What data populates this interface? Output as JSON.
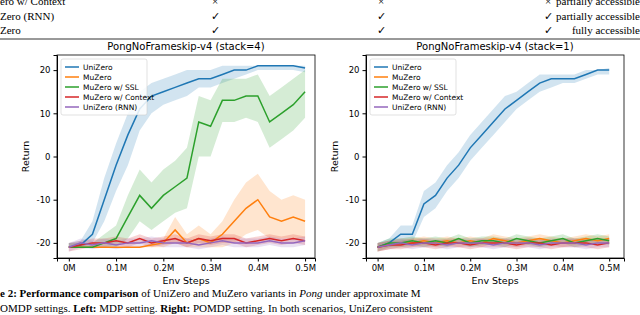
{
  "table": {
    "rows": [
      [
        "ero w/ Context",
        "×",
        "×",
        "×",
        "partially accessible"
      ],
      [
        "Zero (RNN)",
        "✓",
        "✓",
        "✓",
        "partially accessible"
      ],
      [
        "Zero",
        "✓",
        "✓",
        "✓",
        "fully accessible"
      ]
    ]
  },
  "chart_data": [
    {
      "type": "line",
      "title": "PongNoFrameskip-v4 (stack=4)",
      "x_label": "Env Steps",
      "y_label": "Return",
      "x": [
        0,
        25000,
        50000,
        75000,
        100000,
        125000,
        150000,
        175000,
        200000,
        225000,
        250000,
        275000,
        300000,
        325000,
        350000,
        375000,
        400000,
        425000,
        450000,
        475000,
        500000
      ],
      "xlim": [
        -25000,
        521000
      ],
      "xticks": [
        {
          "value": 0,
          "label": "0M"
        },
        {
          "value": 100000,
          "label": "0.1M"
        },
        {
          "value": 200000,
          "label": "0.2M"
        },
        {
          "value": 300000,
          "label": "0.3M"
        },
        {
          "value": 400000,
          "label": "0.4M"
        },
        {
          "value": 500000,
          "label": "0.5M"
        }
      ],
      "ylim": [
        -23.5,
        23.5
      ],
      "yticks": [
        -20,
        -10,
        0,
        10,
        20
      ],
      "grid": false,
      "legend": "upper left",
      "series": [
        {
          "name": "UniZero",
          "color": "#1f77b4",
          "values": [
            -21,
            -20.5,
            -18,
            -10,
            -2,
            5,
            11,
            14,
            15,
            16,
            17,
            18,
            18,
            19,
            20,
            20,
            21,
            21,
            21,
            21,
            20.5
          ],
          "lower": [
            -21,
            -21,
            -20,
            -15,
            -8,
            -2,
            6,
            10,
            12,
            13,
            14,
            16,
            16,
            17,
            18,
            19,
            20,
            20,
            20,
            20,
            19.5
          ],
          "upper": [
            -20,
            -19.5,
            -15,
            -5,
            3,
            10,
            15,
            17,
            18,
            19,
            20,
            20,
            20,
            21,
            21,
            21,
            21,
            21,
            21,
            21,
            21
          ]
        },
        {
          "name": "MuZero",
          "color": "#ff7f0e",
          "values": [
            -21,
            -21,
            -21,
            -21,
            -21,
            -21,
            -21,
            -20.5,
            -20,
            -17,
            -20,
            -19,
            -20,
            -18,
            -15,
            -12,
            -10,
            -14,
            -15,
            -14,
            -15
          ],
          "lower": [
            -21,
            -21,
            -21,
            -21,
            -21,
            -21,
            -21,
            -21,
            -21,
            -20,
            -21,
            -21,
            -21,
            -21,
            -20,
            -18,
            -17,
            -19,
            -19,
            -19,
            -19
          ],
          "upper": [
            -21,
            -21,
            -21,
            -21,
            -21,
            -21,
            -21,
            -20,
            -19,
            -14,
            -18,
            -16,
            -18,
            -15,
            -10,
            -6,
            -4,
            -8,
            -10,
            -9,
            -10
          ]
        },
        {
          "name": "MuZero w/ SSL",
          "color": "#2ca02c",
          "values": [
            -21,
            -21,
            -21,
            -20,
            -19,
            -14,
            -9,
            -12,
            -9,
            -7,
            -5,
            8,
            7,
            13,
            13,
            14,
            14,
            8,
            10,
            12,
            15
          ],
          "lower": [
            -21,
            -21,
            -21,
            -21,
            -21,
            -19,
            -15,
            -17,
            -15,
            -13,
            -12,
            0,
            0,
            8,
            8,
            9,
            8,
            2,
            4,
            6,
            9
          ],
          "upper": [
            -20,
            -20,
            -20,
            -18,
            -16,
            -9,
            -3,
            -6,
            -3,
            -1,
            2,
            14,
            13,
            18,
            18,
            18,
            19,
            14,
            16,
            18,
            20
          ]
        },
        {
          "name": "MuZero w/ Context",
          "color": "#d62728",
          "values": [
            -21,
            -20.5,
            -20,
            -20,
            -19.5,
            -20,
            -19,
            -20,
            -19.5,
            -19,
            -20,
            -19,
            -19.5,
            -19,
            -19,
            -20,
            -19.5,
            -19,
            -19.5,
            -19,
            -19.5
          ],
          "lower": [
            -22,
            -21.5,
            -21,
            -21,
            -20.5,
            -21,
            -20,
            -21,
            -20.5,
            -20,
            -21,
            -20,
            -20.5,
            -20,
            -20,
            -21,
            -20.5,
            -20,
            -20.5,
            -20,
            -20.5
          ],
          "upper": [
            -20,
            -19.5,
            -19,
            -19,
            -18.5,
            -19,
            -18,
            -19,
            -18.5,
            -18,
            -19,
            -18,
            -18.5,
            -18,
            -18,
            -19,
            -18.5,
            -18,
            -18.5,
            -18,
            -18.5
          ]
        },
        {
          "name": "UniZero (RNN)",
          "color": "#9467bd",
          "values": [
            -21,
            -20,
            -20.5,
            -20,
            -20.5,
            -20,
            -20,
            -19.5,
            -20,
            -20,
            -20,
            -20.5,
            -20,
            -19.5,
            -20,
            -20,
            -20,
            -19.5,
            -20,
            -20,
            -19.5
          ],
          "lower": [
            -22,
            -21,
            -21.5,
            -21,
            -21.5,
            -21,
            -21,
            -20.5,
            -21,
            -21,
            -21,
            -21.5,
            -21,
            -20.5,
            -21,
            -21,
            -21,
            -20.5,
            -21,
            -21,
            -20.5
          ],
          "upper": [
            -20,
            -19,
            -19.5,
            -19,
            -19.5,
            -19,
            -19,
            -18.5,
            -19,
            -19,
            -19,
            -19.5,
            -19,
            -18.5,
            -19,
            -19,
            -19,
            -18.5,
            -19,
            -19,
            -18.5
          ]
        }
      ]
    },
    {
      "type": "line",
      "title": "PongNoFrameskip-v4 (stack=1)",
      "x_label": "Env Steps",
      "y_label": "Return",
      "x": [
        0,
        25000,
        50000,
        75000,
        100000,
        125000,
        150000,
        175000,
        200000,
        225000,
        250000,
        275000,
        300000,
        325000,
        350000,
        375000,
        400000,
        425000,
        450000,
        475000,
        500000
      ],
      "xlim": [
        -25000,
        532000
      ],
      "xticks": [
        {
          "value": 0,
          "label": "0M"
        },
        {
          "value": 100000,
          "label": "0.1M"
        },
        {
          "value": 200000,
          "label": "0.2M"
        },
        {
          "value": 300000,
          "label": "0.3M"
        },
        {
          "value": 400000,
          "label": "0.4M"
        },
        {
          "value": 500000,
          "label": "0.5M"
        }
      ],
      "ylim": [
        -23.5,
        23.5
      ],
      "yticks": [
        -20,
        -10,
        0,
        10,
        20
      ],
      "grid": false,
      "legend": "upper left",
      "series": [
        {
          "name": "UniZero",
          "color": "#1f77b4",
          "values": [
            -21,
            -20,
            -18,
            -18,
            -11,
            -9,
            -5,
            -2,
            2,
            5,
            8,
            11,
            13,
            15,
            17,
            18,
            18,
            18,
            19,
            20,
            20
          ],
          "lower": [
            -21,
            -21,
            -20,
            -20,
            -14,
            -12,
            -8,
            -5,
            -1,
            2,
            5,
            8,
            11,
            13,
            15,
            16,
            17,
            17,
            18,
            19,
            19
          ],
          "upper": [
            -20,
            -19,
            -16,
            -16,
            -8,
            -6,
            -2,
            1,
            5,
            8,
            11,
            14,
            15,
            17,
            19,
            19,
            19,
            19,
            20,
            20,
            20.5
          ]
        },
        {
          "name": "MuZero",
          "color": "#ff7f0e",
          "values": [
            -21,
            -20.5,
            -20,
            -20,
            -19.5,
            -20,
            -19.5,
            -20,
            -19.5,
            -20,
            -19,
            -19.5,
            -20,
            -19.5,
            -19,
            -19.5,
            -20,
            -19.5,
            -19,
            -19.5,
            -19
          ],
          "lower": [
            -22,
            -21.5,
            -21,
            -21,
            -20.5,
            -21,
            -20.5,
            -21,
            -20.5,
            -21,
            -20,
            -20.5,
            -21,
            -20.5,
            -20,
            -20.5,
            -21,
            -20.5,
            -20,
            -20.5,
            -20
          ],
          "upper": [
            -20,
            -19.5,
            -19,
            -19,
            -18.5,
            -19,
            -18.5,
            -19,
            -18.5,
            -19,
            -18,
            -18.5,
            -19,
            -18.5,
            -18,
            -18.5,
            -19,
            -18.5,
            -18,
            -18.5,
            -18
          ]
        },
        {
          "name": "MuZero w/ SSL",
          "color": "#2ca02c",
          "values": [
            -21,
            -20,
            -20,
            -19.5,
            -20,
            -19.5,
            -20,
            -19,
            -20,
            -19.5,
            -19.5,
            -20,
            -19,
            -19.5,
            -20,
            -19.5,
            -19,
            -20,
            -19.5,
            -19,
            -19.5
          ],
          "lower": [
            -22,
            -21,
            -21,
            -20.5,
            -21,
            -20.5,
            -21,
            -20,
            -21,
            -20.5,
            -20.5,
            -21,
            -20,
            -20.5,
            -21,
            -20.5,
            -20,
            -21,
            -20.5,
            -20,
            -20.5
          ],
          "upper": [
            -20,
            -19,
            -19,
            -18.5,
            -19,
            -18.5,
            -19,
            -18,
            -19,
            -18.5,
            -18.5,
            -19,
            -18,
            -18.5,
            -19,
            -18.5,
            -18,
            -19,
            -18.5,
            -18,
            -18.5
          ]
        },
        {
          "name": "MuZero w/ Context",
          "color": "#d62728",
          "values": [
            -21,
            -20.5,
            -20.5,
            -20,
            -20,
            -20.5,
            -20,
            -20,
            -20.5,
            -20,
            -20,
            -20,
            -20.5,
            -20,
            -20,
            -20.5,
            -20,
            -20,
            -20,
            -20.5,
            -20
          ],
          "lower": [
            -22,
            -21.5,
            -21.5,
            -21,
            -21,
            -21.5,
            -21,
            -21,
            -21.5,
            -21,
            -21,
            -21,
            -21.5,
            -21,
            -21,
            -21.5,
            -21,
            -21,
            -21,
            -21.5,
            -21
          ],
          "upper": [
            -20,
            -19.5,
            -19.5,
            -19,
            -19,
            -19.5,
            -19,
            -19,
            -19.5,
            -19,
            -19,
            -19,
            -19.5,
            -19,
            -19,
            -19.5,
            -19,
            -19,
            -19,
            -19.5,
            -19
          ]
        },
        {
          "name": "UniZero (RNN)",
          "color": "#9467bd",
          "values": [
            -21,
            -20.5,
            -20,
            -20.5,
            -20,
            -20,
            -20.5,
            -20,
            -20,
            -20,
            -20.5,
            -20,
            -20,
            -20,
            -20.5,
            -20,
            -20,
            -20,
            -20.5,
            -20,
            -20
          ],
          "lower": [
            -22,
            -21.5,
            -21,
            -21.5,
            -21,
            -21,
            -21.5,
            -21,
            -21,
            -21,
            -21.5,
            -21,
            -21,
            -21,
            -21.5,
            -21,
            -21,
            -21,
            -21.5,
            -21,
            -21
          ],
          "upper": [
            -20,
            -19.5,
            -19,
            -19.5,
            -19,
            -19,
            -19.5,
            -19,
            -19,
            -19,
            -19.5,
            -19,
            -19,
            -19,
            -19.5,
            -19,
            -19,
            -19,
            -19.5,
            -19,
            -19
          ]
        }
      ]
    }
  ],
  "caption": [
    [
      {
        "text": "e 2: Performance comparison",
        "style": "bold"
      },
      {
        "text": " of UniZero and MuZero variants in ",
        "style": "normal"
      },
      {
        "text": "Pong",
        "style": "italic"
      },
      {
        "text": " under approximate M",
        "style": "normal"
      }
    ],
    [
      {
        "text": "OMDP settings. ",
        "style": "normal"
      },
      {
        "text": "Left:",
        "style": "bold"
      },
      {
        "text": " MDP setting. ",
        "style": "normal"
      },
      {
        "text": "Right:",
        "style": "bold"
      },
      {
        "text": " POMDP setting. In both scenarios, UniZero consistent",
        "style": "normal"
      }
    ]
  ]
}
